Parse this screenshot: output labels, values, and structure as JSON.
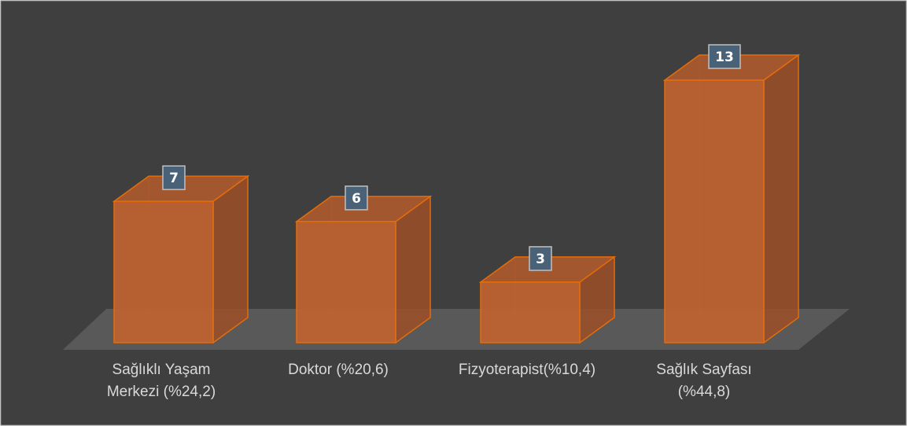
{
  "chart_data": {
    "type": "bar",
    "categories": [
      [
        "Sağlıklı Yaşam",
        "Merkezi (%24,2)"
      ],
      [
        "Doktor (%20,6)"
      ],
      [
        "Fizyoterapist(%10,4)"
      ],
      [
        "Sağlık Sayfası",
        "(%44,8)"
      ]
    ],
    "values": [
      7,
      6,
      3,
      13
    ],
    "value_labels": [
      "7",
      "6",
      "3",
      "13"
    ],
    "title": "",
    "xlabel": "",
    "ylabel": "",
    "ylim": [
      0,
      13
    ],
    "grid": false,
    "legend": "none",
    "style": "3d-column",
    "colors": {
      "background": "#3f3f3f",
      "frame": "#8a8a8a",
      "floor": "#595959",
      "bar_front": "#c0622f",
      "bar_side": "#9a4f28",
      "bar_top": "#ae5a2c",
      "bar_edge": "#e46c0a",
      "label_box": "#4a6278",
      "label_border": "#bfbfbf",
      "category_text": "#d9d9d9"
    }
  }
}
